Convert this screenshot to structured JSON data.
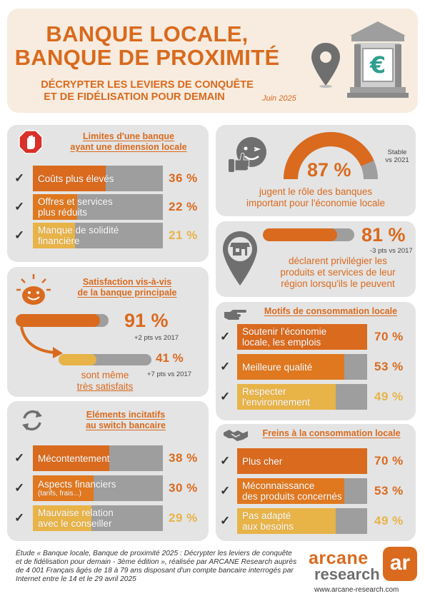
{
  "header": {
    "title_line1": "BANQUE LOCALE,",
    "title_line2": "BANQUE DE PROXIMITÉ",
    "subtitle_line1": "DÉCRYPTER LES LEVIERS DE CONQUÊTE",
    "subtitle_line2": "ET DE FIDÉLISATION POUR DEMAIN",
    "date": "Juin 2025",
    "icons": [
      "location-pin-icon",
      "bank-euro-icon"
    ]
  },
  "colors": {
    "orange": "#d96a1e",
    "amber": "#e0781f",
    "yellow": "#e8b347",
    "grey_bar": "#9e9e9e",
    "panel": "#e4e4e4"
  },
  "limites": {
    "title_line1": "Limites d'une banque",
    "title_line2": "ayant une dimension locale",
    "icon": "stop-hand-icon",
    "items": [
      {
        "label_line1": "Coûts plus élevés",
        "label_line2": "",
        "pct": "36 %",
        "value": 36
      },
      {
        "label_line1": "Offres et services",
        "label_line2": "plus réduits",
        "pct": "22 %",
        "value": 22
      },
      {
        "label_line1": "Manque de solidité",
        "label_line2": "financière",
        "pct": "21 %",
        "value": 21
      }
    ]
  },
  "role": {
    "icon": "thumbs-up-wink-icon",
    "pct": "87 %",
    "value": 87,
    "note_line1": "Stable",
    "note_line2": "vs 2021",
    "text_line1": "jugent le rôle des banques",
    "text_line2": "important pour l'économie locale"
  },
  "region": {
    "icon": "shop-pin-icon",
    "pct": "81 %",
    "value": 81,
    "note": "-3 pts vs 2017",
    "text_line1": "déclarent privilégier les",
    "text_line2": "produits et services de leur",
    "text_line3": "région lorsqu'ils le peuvent"
  },
  "satisfaction": {
    "icon": "smiley-sun-icon",
    "title_line1": "Satisfaction vis-à-vis",
    "title_line2": "de la banque principale",
    "main_pct": "91 %",
    "main_value": 91,
    "main_note": "+2 pts vs 2017",
    "sub_pct": "41 %",
    "sub_value": 41,
    "sub_note": "+7 pts vs 2017",
    "sub_text_line1": "sont même",
    "sub_text_line2": "très satisfaits"
  },
  "motifs": {
    "icon": "pointing-hand-icon",
    "title": "Motifs de consommation locale",
    "items": [
      {
        "label_line1": "Soutenir l'économie",
        "label_line2": "locale, les emplois",
        "pct": "70 %",
        "value": 70
      },
      {
        "label_line1": "Meilleure qualité",
        "label_line2": "",
        "pct": "53 %",
        "value": 53
      },
      {
        "label_line1": "Respecter",
        "label_line2": "l'environnement",
        "pct": "49 %",
        "value": 49
      }
    ]
  },
  "switch": {
    "icon": "refresh-arrows-icon",
    "title_line1": "Eléments incitatifs",
    "title_line2": "au switch bancaire",
    "items": [
      {
        "label_line1": "Mécontentement",
        "label_line2": "",
        "pct": "38 %",
        "value": 38
      },
      {
        "label_line1": "Aspects financiers",
        "label_line2": "(tarifs, frais...)",
        "pct": "30 %",
        "value": 30
      },
      {
        "label_line1": "Mauvaise relation",
        "label_line2": "avec le conseiller",
        "pct": "29 %",
        "value": 29
      }
    ]
  },
  "freins": {
    "icon": "handshake-icon",
    "title": "Freins à la consommation locale",
    "items": [
      {
        "label_line1": "Plus cher",
        "label_line2": "",
        "pct": "70 %",
        "value": 70
      },
      {
        "label_line1": "Méconnaissance",
        "label_line2": "des produits concernés",
        "pct": "53 %",
        "value": 53
      },
      {
        "label_line1": "Pas adapté",
        "label_line2": "aux besoins",
        "pct": "49 %",
        "value": 49
      }
    ]
  },
  "footer": {
    "study_text": "Étude « Banque locale, Banque de proximité 2025 : Décrypter les leviers de conquête et de fidélisation pour demain - 3ème édition », réalisée par ARCANE Research auprès de 4 001 Français âgés de 18 à 79 ans disposant d'un compte bancaire interrogés par Internet entre le 14 et le 29 avril 2025",
    "logo_word1": "arcane",
    "logo_word2": "research",
    "logo_mark": "ar",
    "url": "www.arcane-research.com"
  }
}
